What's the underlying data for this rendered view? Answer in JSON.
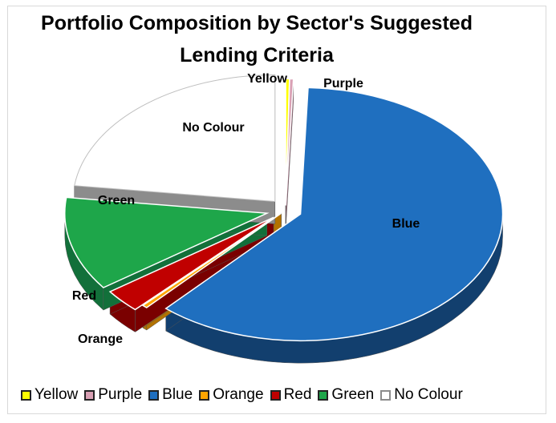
{
  "chart_data": {
    "type": "pie",
    "title_lines": [
      "Portfolio Composition by Sector's Suggested",
      "Lending Criteria"
    ],
    "slices": [
      {
        "name": "Yellow",
        "value": 0.3,
        "color": "#FFFF00",
        "label": "Yellow"
      },
      {
        "name": "Purple",
        "value": 0.3,
        "color": "#D9A0B4",
        "label": "Purple"
      },
      {
        "name": "Blue",
        "value": 61.0,
        "color": "#1F6FBF",
        "label": "Blue"
      },
      {
        "name": "Orange",
        "value": 0.4,
        "color": "#FFA500",
        "label": "Orange"
      },
      {
        "name": "Red",
        "value": 3.0,
        "color": "#C00000",
        "label": "Red"
      },
      {
        "name": "Green",
        "value": 12.0,
        "color": "#1EA64A",
        "label": "Green"
      },
      {
        "name": "No Colour",
        "value": 23.0,
        "color": "#FFFFFF",
        "label": "No Colour"
      }
    ],
    "legend_position": "bottom"
  }
}
